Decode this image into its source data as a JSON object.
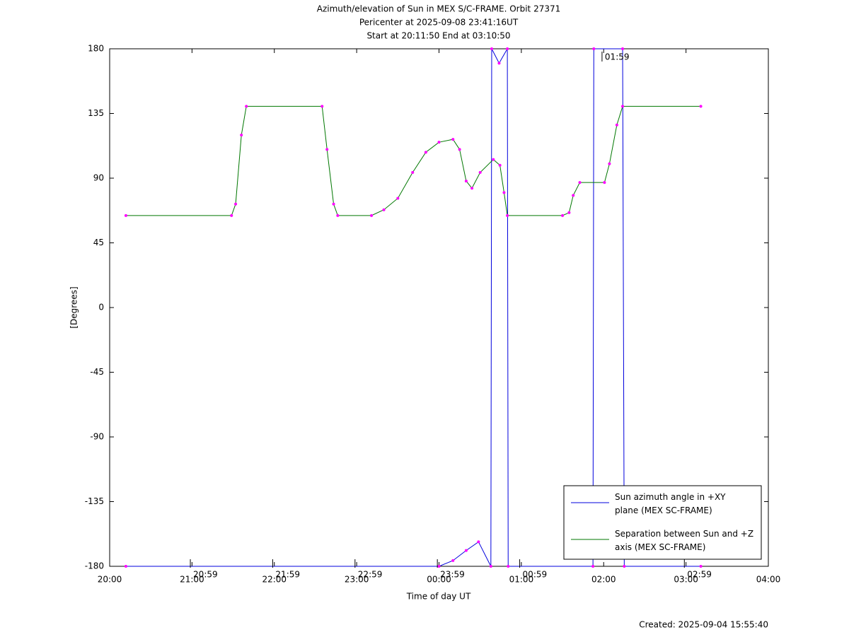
{
  "chart_data": {
    "type": "line",
    "title": "Azimuth/elevation of Sun in MEX S/C-FRAME.  Orbit 27371",
    "subtitle": [
      "Pericenter at 2025-09-08 23:41:16UT",
      "Start at 20:11:50 End at 03:10:50"
    ],
    "x_label": "Time of day UT",
    "y_label": "[Degrees]",
    "footer": "Created: 2025-09-04 15:55:40",
    "xlim": [
      20,
      28
    ],
    "xticks": [
      {
        "value": 20,
        "label": "20:00"
      },
      {
        "value": 21,
        "label": "21:00"
      },
      {
        "value": 22,
        "label": "22:00"
      },
      {
        "value": 23,
        "label": "23:00"
      },
      {
        "value": 24,
        "label": "00:00"
      },
      {
        "value": 25,
        "label": "01:00"
      },
      {
        "value": 26,
        "label": "02:00"
      },
      {
        "value": 27,
        "label": "03:00"
      },
      {
        "value": 28,
        "label": "04:00"
      }
    ],
    "ylim": [
      -180,
      180
    ],
    "yticks": [
      180,
      135,
      90,
      45,
      0,
      -45,
      -90,
      -135,
      -180
    ],
    "grid": false,
    "legend": "lower right",
    "series": [
      {
        "name": "Sun azimuth angle in +XY plane (MEX SC-FRAME)",
        "color": "#0000dd",
        "x": [
          20.197,
          24.0,
          24.17,
          24.33,
          24.48,
          24.63,
          24.64,
          24.73,
          24.83,
          24.84,
          25.87,
          25.88,
          26.23,
          26.25,
          27.18
        ],
        "values": [
          -180,
          -180,
          -176,
          -169,
          -163,
          -180,
          180,
          170,
          180,
          -180,
          -180,
          180,
          180,
          -180,
          -180
        ]
      },
      {
        "name": "Separation between Sun and +Z axis (MEX SC-FRAME)",
        "color": "#007700",
        "x": [
          20.197,
          21.48,
          21.53,
          21.6,
          21.66,
          22.58,
          22.64,
          22.72,
          22.77,
          23.18,
          23.33,
          23.5,
          23.68,
          23.84,
          24.0,
          24.17,
          24.25,
          24.33,
          24.4,
          24.5,
          24.66,
          24.74,
          24.79,
          24.83,
          25.5,
          25.58,
          25.63,
          25.71,
          26.01,
          26.07,
          26.16,
          26.23,
          27.18
        ],
        "values": [
          64,
          64,
          72,
          120,
          140,
          140,
          110,
          72,
          64,
          64,
          68,
          76,
          94,
          108,
          115,
          117,
          110,
          88,
          83,
          94,
          103,
          99,
          80,
          64,
          64,
          66,
          78,
          87,
          87,
          100,
          127,
          140,
          140
        ]
      }
    ],
    "annotations": [
      {
        "text": "20:59",
        "x": 20.98,
        "y": -180
      },
      {
        "text": "21:59",
        "x": 21.98,
        "y": -180
      },
      {
        "text": "22:59",
        "x": 22.98,
        "y": -180
      },
      {
        "text": "23:59",
        "x": 23.98,
        "y": -180
      },
      {
        "text": "00:59",
        "x": 24.98,
        "y": -180
      },
      {
        "text": "01:59",
        "x": 25.98,
        "y": 180
      },
      {
        "text": "02:59",
        "x": 26.98,
        "y": -180
      }
    ]
  }
}
